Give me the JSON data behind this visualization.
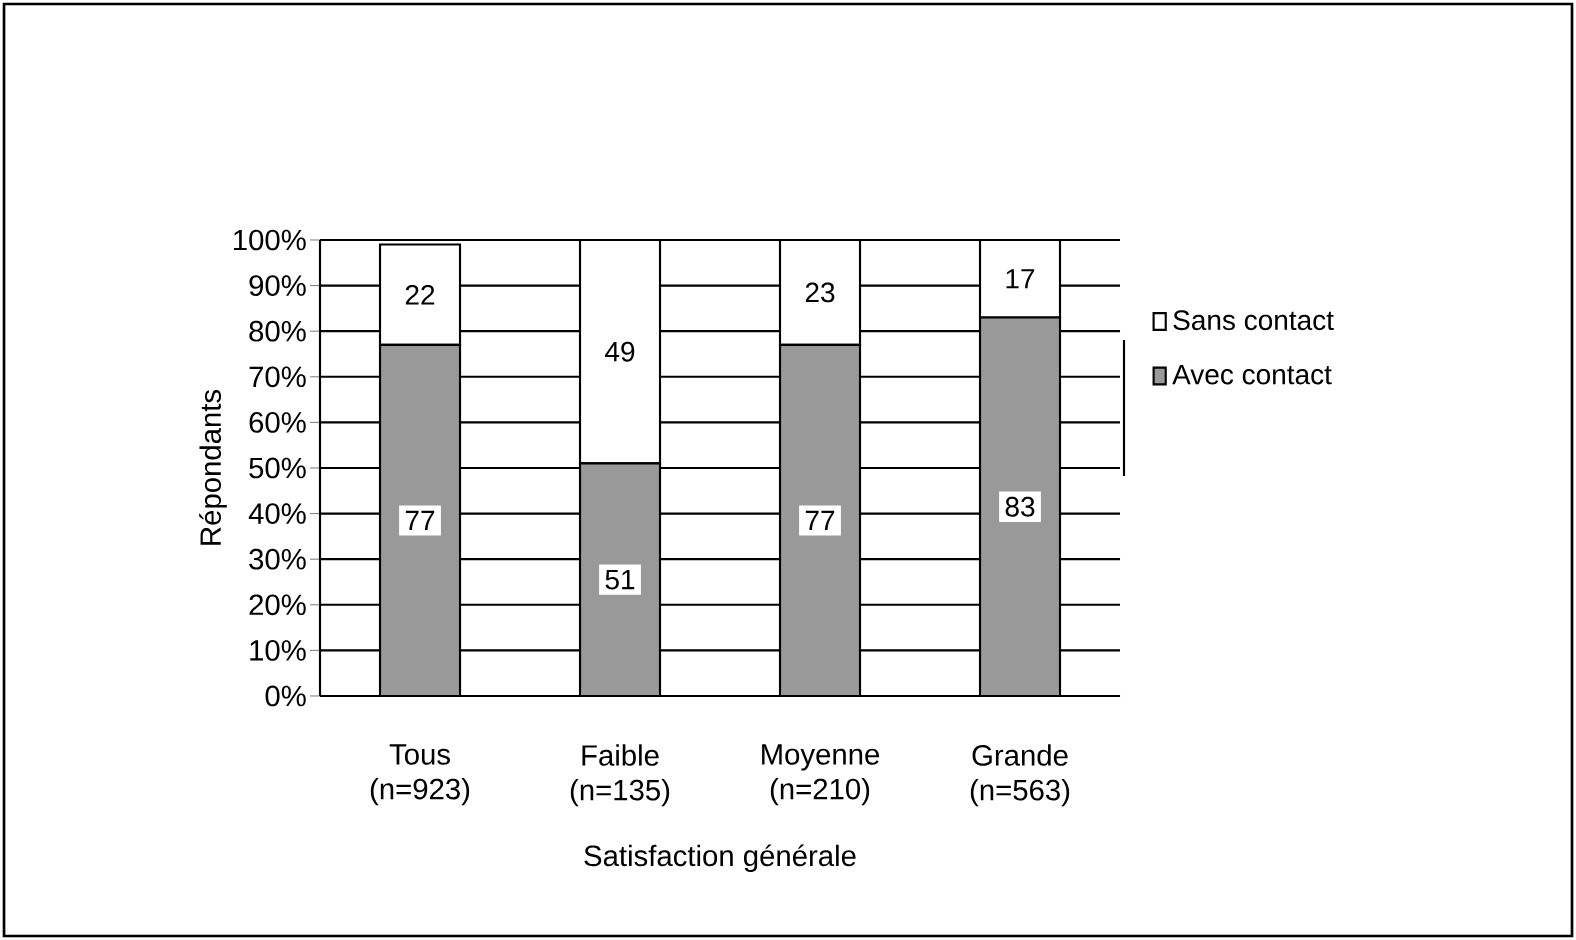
{
  "chart_data": {
    "type": "bar",
    "stacked": true,
    "xlabel": "Satisfaction générale",
    "ylabel": "Répondants",
    "categories": [
      "Tous (n=923)",
      "Faible (n=135)",
      "Moyenne (n=210)",
      "Grande (n=563)"
    ],
    "series": [
      {
        "name": "Avec contact",
        "color": "#999999",
        "values": [
          77,
          51,
          77,
          83
        ]
      },
      {
        "name": "Sans contact",
        "color": "#ffffff",
        "values": [
          22,
          49,
          23,
          17
        ]
      }
    ],
    "ylim": [
      0,
      100
    ],
    "yticks": [
      {
        "value": 0,
        "label": "0%"
      },
      {
        "value": 10,
        "label": "10%"
      },
      {
        "value": 20,
        "label": "20%"
      },
      {
        "value": 30,
        "label": "30%"
      },
      {
        "value": 40,
        "label": "40%"
      },
      {
        "value": 50,
        "label": "50%"
      },
      {
        "value": 60,
        "label": "60%"
      },
      {
        "value": 70,
        "label": "70%"
      },
      {
        "value": 80,
        "label": "80%"
      },
      {
        "value": 90,
        "label": "90%"
      },
      {
        "value": 100,
        "label": "100%"
      }
    ],
    "grid": "y",
    "legend": "right",
    "data_labels": true
  }
}
